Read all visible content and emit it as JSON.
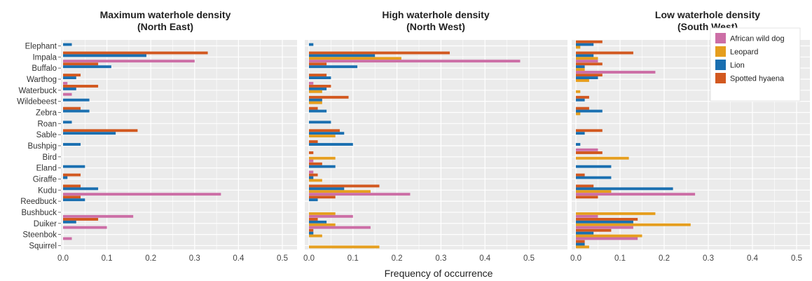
{
  "figure": {
    "xlabel": "Frequency of occurrence"
  },
  "colors": {
    "African wild dog": "#cc6ea6",
    "Leopard": "#e59e1e",
    "Lion": "#1a6fb0",
    "Spotted hyaena": "#d2581f",
    "panel_bg": "#ebebeb",
    "grid": "#ffffff"
  },
  "legend": {
    "placement": "top-right of third panel",
    "items": [
      "African wild dog",
      "Leopard",
      "Lion",
      "Spotted hyaena"
    ]
  },
  "chart_data": [
    {
      "type": "bar",
      "orientation": "horizontal",
      "title": [
        "Maximum waterhole density",
        "(North East)"
      ],
      "xlabel": "Frequency of occurrence",
      "xlim": [
        0,
        0.5
      ],
      "xticks": [
        "0.0",
        "0.1",
        "0.2",
        "0.3",
        "0.4",
        "0.5"
      ],
      "categories": [
        "Elephant",
        "Impala",
        "Buffalo",
        "Warthog",
        "Waterbuck",
        "Wildebeest",
        "Zebra",
        "Roan",
        "Sable",
        "Bushpig",
        "Bird",
        "Eland",
        "Giraffe",
        "Kudu",
        "Reedbuck",
        "Bushbuck",
        "Duiker",
        "Steenbok",
        "Squirrel"
      ],
      "series": [
        {
          "name": "African wild dog",
          "values": [
            0,
            0.3,
            0,
            0.01,
            0.02,
            0,
            0,
            0,
            0,
            0,
            0,
            0,
            0,
            0.36,
            0,
            0.16,
            0.1,
            0.02,
            0
          ]
        },
        {
          "name": "Leopard",
          "values": [
            0,
            0,
            0,
            0,
            0,
            0,
            0,
            0,
            0,
            0,
            0,
            0,
            0,
            0,
            0,
            0,
            0,
            0,
            0
          ]
        },
        {
          "name": "Lion",
          "values": [
            0.02,
            0.19,
            0.11,
            0.03,
            0.03,
            0.06,
            0.06,
            0.02,
            0.12,
            0.04,
            0,
            0.05,
            0.01,
            0.08,
            0.05,
            0,
            0.03,
            0,
            0
          ]
        },
        {
          "name": "Spotted hyaena",
          "values": [
            0,
            0.33,
            0.08,
            0.04,
            0.08,
            0,
            0.04,
            0,
            0.17,
            0,
            0,
            0,
            0.04,
            0.04,
            0.04,
            0,
            0.08,
            0,
            0
          ]
        }
      ]
    },
    {
      "type": "bar",
      "orientation": "horizontal",
      "title": [
        "High waterhole density",
        "(North West)"
      ],
      "xlabel": "Frequency of occurrence",
      "xlim": [
        0,
        0.5
      ],
      "xticks": [
        "0.0",
        "0.1",
        "0.2",
        "0.3",
        "0.4",
        "0.5"
      ],
      "categories": [
        "Elephant",
        "Impala",
        "Buffalo",
        "Warthog",
        "Waterbuck",
        "Wildebeest",
        "Zebra",
        "Roan",
        "Sable",
        "Bushpig",
        "Bird",
        "Eland",
        "Giraffe",
        "Kudu",
        "Reedbuck",
        "Bushbuck",
        "Duiker",
        "Steenbok",
        "Squirrel"
      ],
      "series": [
        {
          "name": "African wild dog",
          "values": [
            0,
            0.48,
            0,
            0.01,
            0,
            0,
            0,
            0,
            0,
            0,
            0.01,
            0.01,
            0,
            0.23,
            0,
            0.1,
            0.14,
            0,
            0
          ]
        },
        {
          "name": "Leopard",
          "values": [
            0,
            0.21,
            0,
            0,
            0.03,
            0.03,
            0,
            0,
            0.06,
            0,
            0.06,
            0,
            0.03,
            0.14,
            0,
            0.06,
            0.06,
            0.03,
            0.16
          ]
        },
        {
          "name": "Lion",
          "values": [
            0.01,
            0.15,
            0.11,
            0.05,
            0.04,
            0.03,
            0.04,
            0.05,
            0.08,
            0.1,
            0,
            0.06,
            0.01,
            0.08,
            0.02,
            0,
            0.04,
            0.01,
            0
          ]
        },
        {
          "name": "Spotted hyaena",
          "values": [
            0,
            0.32,
            0.04,
            0.04,
            0.05,
            0.09,
            0.02,
            0,
            0.07,
            0.02,
            0.01,
            0.03,
            0.02,
            0.16,
            0.06,
            0,
            0.02,
            0.01,
            0
          ]
        }
      ]
    },
    {
      "type": "bar",
      "orientation": "horizontal",
      "title": [
        "Low waterhole density",
        "(South West)"
      ],
      "xlabel": "Frequency of occurrence",
      "xlim": [
        0,
        0.5
      ],
      "xticks": [
        "0.0",
        "0.1",
        "0.2",
        "0.3",
        "0.4",
        "0.5"
      ],
      "categories": [
        "Elephant",
        "Impala",
        "Buffalo",
        "Warthog",
        "Waterbuck",
        "Wildebeest",
        "Zebra",
        "Roan",
        "Sable",
        "Bushpig",
        "Bird",
        "Eland",
        "Giraffe",
        "Kudu",
        "Reedbuck",
        "Bushbuck",
        "Duiker",
        "Steenbok",
        "Squirrel"
      ],
      "series": [
        {
          "name": "African wild dog",
          "values": [
            0,
            0.05,
            0.18,
            0,
            0,
            0,
            0,
            0,
            0,
            0.05,
            0,
            0,
            0,
            0.27,
            0,
            0.05,
            0.13,
            0.14,
            0
          ]
        },
        {
          "name": "Leopard",
          "values": [
            0.01,
            0.05,
            0.02,
            0.03,
            0.01,
            0,
            0.01,
            0,
            0,
            0,
            0.12,
            0,
            0,
            0.08,
            0,
            0.18,
            0.26,
            0.15,
            0.03
          ]
        },
        {
          "name": "Lion",
          "values": [
            0.04,
            0.04,
            0.02,
            0.05,
            0,
            0.02,
            0.06,
            0,
            0.02,
            0.01,
            0,
            0.08,
            0.08,
            0.22,
            0,
            0,
            0.13,
            0.04,
            0.02
          ]
        },
        {
          "name": "Spotted hyaena",
          "values": [
            0.06,
            0.13,
            0.06,
            0.06,
            0,
            0.03,
            0.03,
            0,
            0.06,
            0,
            0.06,
            0,
            0.02,
            0.04,
            0.05,
            0,
            0.14,
            0.08,
            0.02
          ]
        }
      ]
    }
  ]
}
